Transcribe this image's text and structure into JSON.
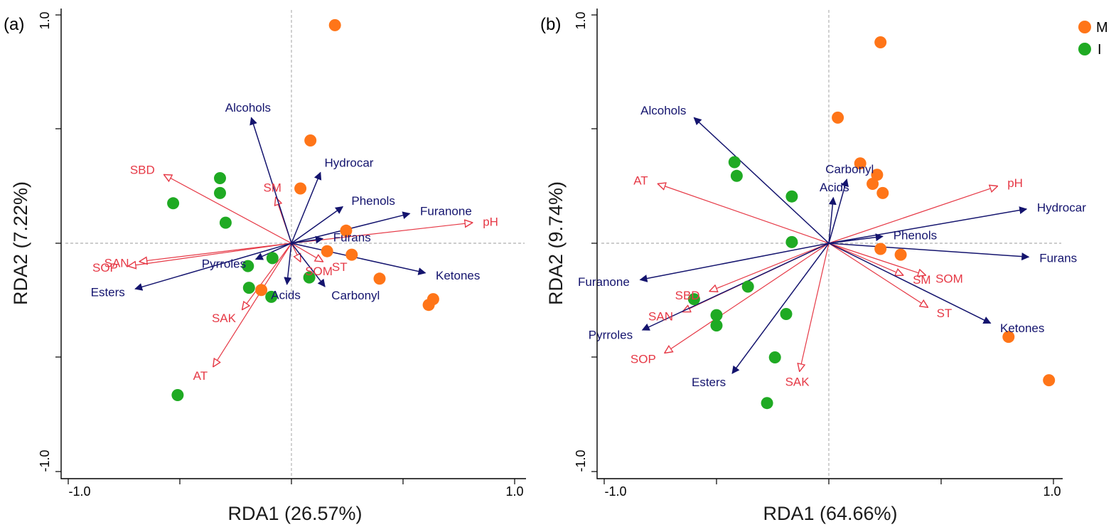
{
  "colors": {
    "M": "#ff7518",
    "I": "#1faa23",
    "species": "#14146e",
    "environment": "#e63946"
  },
  "legend": [
    {
      "key": "M",
      "label": "M"
    },
    {
      "key": "I",
      "label": "I"
    }
  ],
  "chart_data": [
    {
      "type": "scatter",
      "panel_label": "(a)",
      "xlabel": "RDA1 (26.57%)",
      "ylabel": "RDA2 (7.22%)",
      "xlim": [
        -1.0,
        1.0
      ],
      "ylim": [
        -1.0,
        1.0
      ],
      "xtick_labels": [
        "-1.0",
        "1.0"
      ],
      "ytick_labels": [
        "-1.0",
        "1.0"
      ],
      "points": [
        {
          "group": "M",
          "x": 0.195,
          "y": 0.955
        },
        {
          "group": "M",
          "x": 0.085,
          "y": 0.45
        },
        {
          "group": "M",
          "x": 0.04,
          "y": 0.24
        },
        {
          "group": "M",
          "x": 0.245,
          "y": 0.055
        },
        {
          "group": "M",
          "x": 0.16,
          "y": -0.035
        },
        {
          "group": "M",
          "x": 0.27,
          "y": -0.05
        },
        {
          "group": "M",
          "x": 0.395,
          "y": -0.155
        },
        {
          "group": "M",
          "x": -0.135,
          "y": -0.205
        },
        {
          "group": "M",
          "x": 0.635,
          "y": -0.245
        },
        {
          "group": "M",
          "x": 0.615,
          "y": -0.27
        },
        {
          "group": "I",
          "x": -0.32,
          "y": 0.285
        },
        {
          "group": "I",
          "x": -0.32,
          "y": 0.22
        },
        {
          "group": "I",
          "x": -0.53,
          "y": 0.175
        },
        {
          "group": "I",
          "x": -0.295,
          "y": 0.09
        },
        {
          "group": "I",
          "x": -0.195,
          "y": -0.1
        },
        {
          "group": "I",
          "x": -0.085,
          "y": -0.065
        },
        {
          "group": "I",
          "x": 0.08,
          "y": -0.15
        },
        {
          "group": "I",
          "x": -0.19,
          "y": -0.195
        },
        {
          "group": "I",
          "x": -0.09,
          "y": -0.235
        },
        {
          "group": "I",
          "x": -0.51,
          "y": -0.665
        }
      ],
      "species_arrows": [
        {
          "name": "Alcohols",
          "x": -0.18,
          "y": 0.55
        },
        {
          "name": "Hydrocar",
          "x": 0.13,
          "y": 0.31
        },
        {
          "name": "Phenols",
          "x": 0.23,
          "y": 0.16
        },
        {
          "name": "Furanone",
          "x": 0.53,
          "y": 0.13
        },
        {
          "name": "Furans",
          "x": 0.14,
          "y": 0.02
        },
        {
          "name": "Ketones",
          "x": 0.6,
          "y": -0.13
        },
        {
          "name": "Esters",
          "x": -0.7,
          "y": -0.2
        },
        {
          "name": "Pyrroles",
          "x": -0.16,
          "y": -0.07
        },
        {
          "name": "Acids",
          "x": -0.02,
          "y": -0.18
        },
        {
          "name": "Carbonyl",
          "x": 0.15,
          "y": -0.19
        }
      ],
      "env_arrows": [
        {
          "name": "SBD",
          "x": -0.57,
          "y": 0.3
        },
        {
          "name": "SM",
          "x": -0.07,
          "y": 0.2
        },
        {
          "name": "pH",
          "x": 0.81,
          "y": 0.09
        },
        {
          "name": "SAN",
          "x": -0.68,
          "y": -0.08
        },
        {
          "name": "SOP",
          "x": -0.73,
          "y": -0.1
        },
        {
          "name": "SOM",
          "x": 0.04,
          "y": -0.08
        },
        {
          "name": "ST",
          "x": 0.14,
          "y": -0.08
        },
        {
          "name": "SAK",
          "x": -0.22,
          "y": -0.29
        },
        {
          "name": "AT",
          "x": -0.35,
          "y": -0.54
        }
      ]
    },
    {
      "type": "scatter",
      "panel_label": "(b)",
      "xlabel": "RDA1 (64.66%)",
      "ylabel": "RDA2 (9.74%)",
      "xlim": [
        -1.0,
        1.0
      ],
      "ylim": [
        -1.0,
        1.0
      ],
      "xtick_labels": [
        "-1.0",
        "1.0"
      ],
      "ytick_labels": [
        "-1.0",
        "1.0"
      ],
      "points": [
        {
          "group": "M",
          "x": 0.23,
          "y": 0.88
        },
        {
          "group": "M",
          "x": 0.04,
          "y": 0.55
        },
        {
          "group": "M",
          "x": 0.14,
          "y": 0.35
        },
        {
          "group": "M",
          "x": 0.215,
          "y": 0.3
        },
        {
          "group": "M",
          "x": 0.195,
          "y": 0.26
        },
        {
          "group": "M",
          "x": 0.24,
          "y": 0.22
        },
        {
          "group": "M",
          "x": 0.23,
          "y": -0.025
        },
        {
          "group": "M",
          "x": 0.32,
          "y": -0.05
        },
        {
          "group": "M",
          "x": 0.8,
          "y": -0.41
        },
        {
          "group": "M",
          "x": 0.98,
          "y": -0.6
        },
        {
          "group": "I",
          "x": -0.42,
          "y": 0.355
        },
        {
          "group": "I",
          "x": -0.41,
          "y": 0.295
        },
        {
          "group": "I",
          "x": -0.165,
          "y": 0.205
        },
        {
          "group": "I",
          "x": -0.165,
          "y": 0.005
        },
        {
          "group": "I",
          "x": -0.5,
          "y": -0.315
        },
        {
          "group": "I",
          "x": -0.6,
          "y": -0.245
        },
        {
          "group": "I",
          "x": -0.36,
          "y": -0.19
        },
        {
          "group": "I",
          "x": -0.19,
          "y": -0.31
        },
        {
          "group": "I",
          "x": -0.5,
          "y": -0.36
        },
        {
          "group": "I",
          "x": -0.24,
          "y": -0.5
        },
        {
          "group": "I",
          "x": -0.275,
          "y": -0.7
        }
      ],
      "species_arrows": [
        {
          "name": "Alcohols",
          "x": -0.6,
          "y": 0.55
        },
        {
          "name": "Carbonyl",
          "x": 0.08,
          "y": 0.28
        },
        {
          "name": "Acids",
          "x": 0.02,
          "y": 0.2
        },
        {
          "name": "Hydrocar",
          "x": 0.88,
          "y": 0.15
        },
        {
          "name": "Phenols",
          "x": 0.24,
          "y": 0.03
        },
        {
          "name": "Furans",
          "x": 0.89,
          "y": -0.06
        },
        {
          "name": "Ketones",
          "x": 0.72,
          "y": -0.35
        },
        {
          "name": "Furanone",
          "x": -0.84,
          "y": -0.16
        },
        {
          "name": "Pyrroles",
          "x": -0.83,
          "y": -0.38
        },
        {
          "name": "Esters",
          "x": -0.43,
          "y": -0.57
        }
      ],
      "env_arrows": [
        {
          "name": "AT",
          "x": -0.76,
          "y": 0.26
        },
        {
          "name": "pH",
          "x": 0.75,
          "y": 0.25
        },
        {
          "name": "SOM",
          "x": 0.43,
          "y": -0.14
        },
        {
          "name": "SM",
          "x": 0.33,
          "y": -0.14
        },
        {
          "name": "ST",
          "x": 0.44,
          "y": -0.28
        },
        {
          "name": "SBD",
          "x": -0.53,
          "y": -0.21
        },
        {
          "name": "SAN",
          "x": -0.65,
          "y": -0.3
        },
        {
          "name": "SOP",
          "x": -0.73,
          "y": -0.48
        },
        {
          "name": "SAK",
          "x": -0.13,
          "y": -0.56
        }
      ]
    }
  ]
}
